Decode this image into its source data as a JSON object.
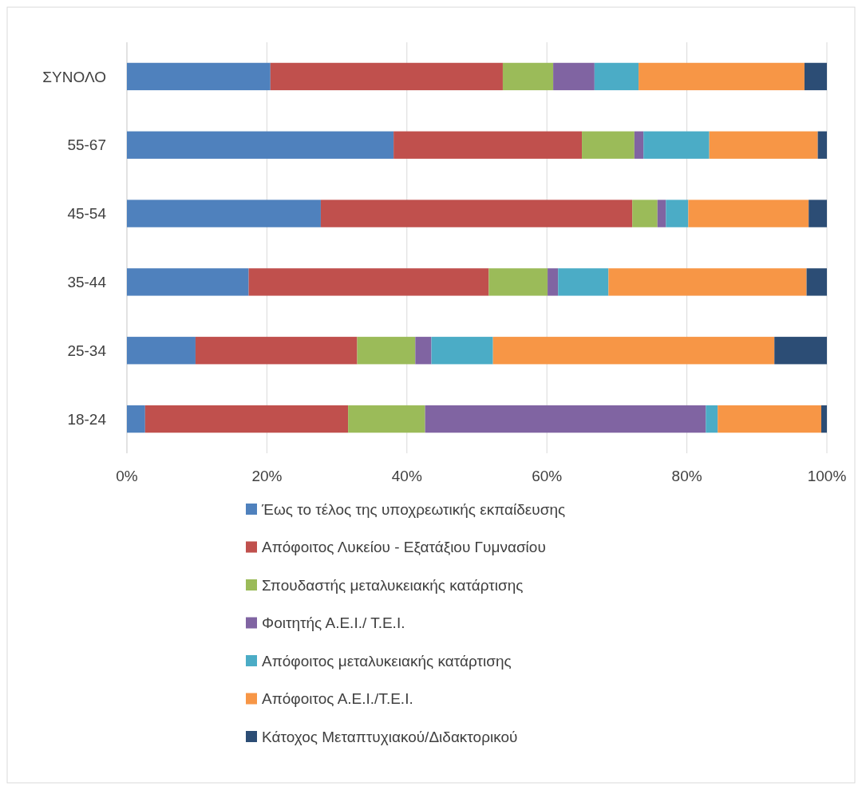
{
  "chart_data": {
    "type": "bar",
    "orientation": "horizontal",
    "stacked": true,
    "categories": [
      "ΣΥΝΟΛΟ",
      "55-67",
      "45-54",
      "35-44",
      "25-34",
      "18-24"
    ],
    "series": [
      {
        "name": "Έως το τέλος της υποχρεωτικής εκπαίδευσης",
        "color": "#4f81bd",
        "values": [
          20.5,
          38.1,
          27.7,
          17.4,
          9.8,
          2.6
        ]
      },
      {
        "name": "Απόφοιτος Λυκείου - Εξατάξιου Γυμνασίου",
        "color": "#c0504d",
        "values": [
          33.2,
          26.9,
          44.5,
          34.3,
          23.1,
          29.0
        ]
      },
      {
        "name": "Σπουδαστής μεταλυκειακής κατάρτισης",
        "color": "#9bbb59",
        "values": [
          7.2,
          7.5,
          3.6,
          8.4,
          8.3,
          11.0
        ]
      },
      {
        "name": "Φοιτητής Α.Ε.Ι./ Τ.Ε.Ι.",
        "color": "#8064a2",
        "values": [
          5.9,
          1.3,
          1.2,
          1.5,
          2.3,
          40.1
        ]
      },
      {
        "name": "Απόφοιτος μεταλυκειακής κατάρτισης",
        "color": "#4bacc6",
        "values": [
          6.3,
          9.4,
          3.2,
          7.2,
          8.8,
          1.7
        ]
      },
      {
        "name": "Απόφοιτος Α.Ε.Ι./Τ.Ε.Ι.",
        "color": "#f79646",
        "values": [
          23.7,
          15.5,
          17.2,
          28.3,
          40.2,
          14.8
        ]
      },
      {
        "name": "Κάτοχος Μεταπτυχιακού/Διδακτορικού",
        "color": "#2c4d75",
        "values": [
          3.2,
          1.3,
          2.6,
          2.9,
          7.5,
          0.8
        ]
      }
    ],
    "xlim": [
      0,
      100
    ],
    "xticks": [
      {
        "value": 0,
        "label": "0%"
      },
      {
        "value": 20,
        "label": "20%"
      },
      {
        "value": 40,
        "label": "40%"
      },
      {
        "value": 60,
        "label": "60%"
      },
      {
        "value": 80,
        "label": "80%"
      },
      {
        "value": 100,
        "label": "100%"
      }
    ],
    "grid": "x",
    "legend": "bottom"
  }
}
